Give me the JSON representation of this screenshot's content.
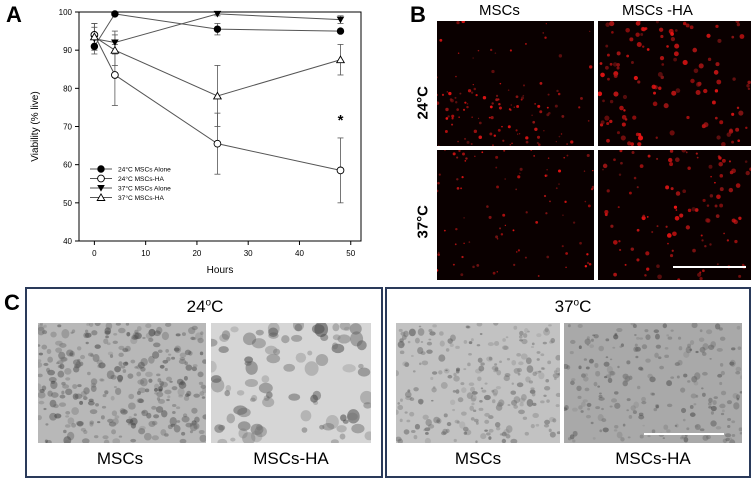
{
  "panelA": {
    "letter": "A",
    "chart_data": {
      "type": "line",
      "xlabel": "Hours",
      "ylabel": "Viability (% live)",
      "xlim": [
        -3,
        52
      ],
      "ylim": [
        40,
        100
      ],
      "xticks": [
        0,
        10,
        20,
        30,
        40,
        50
      ],
      "yticks": [
        40,
        50,
        60,
        70,
        80,
        90,
        100
      ],
      "x": [
        0,
        4,
        24,
        48
      ],
      "series": [
        {
          "name": "24°C MSCs Alone",
          "marker": "filled-circle",
          "values": [
            91,
            99.5,
            95.5,
            95
          ],
          "errors": [
            2,
            0.5,
            1.5,
            0.5
          ]
        },
        {
          "name": "24°C MSCs-HA",
          "marker": "open-circle",
          "values": [
            94,
            83.5,
            65.5,
            58.5
          ],
          "errors": [
            3,
            8,
            8,
            8.5
          ]
        },
        {
          "name": "37°C MSCs Alone",
          "marker": "filled-triangle-down",
          "values": [
            93,
            92,
            99.5,
            98
          ],
          "errors": [
            3,
            3,
            0.5,
            1
          ]
        },
        {
          "name": "37°C MSCs-HA",
          "marker": "open-triangle-up",
          "values": [
            93.5,
            90,
            78,
            87.5
          ],
          "errors": [
            3.5,
            4,
            8,
            4
          ]
        }
      ],
      "annotation": {
        "text": "*",
        "x": 48,
        "y": 72
      },
      "legend_position": "lower-left",
      "grid": false
    }
  },
  "panelB": {
    "letter": "B",
    "col1": "MSCs",
    "col2": "MSCs -HA",
    "row1": "24°C",
    "row2": "37°C",
    "image_color": "#ff2020"
  },
  "panelC": {
    "letter": "C",
    "left_temp_base": "24",
    "left_temp_unit": "C",
    "right_temp_base": "37",
    "right_temp_unit": "C",
    "sup": "o",
    "label1": "MSCs",
    "label2": "MSCs-HA",
    "label3": "MSCs",
    "label4": "MSCs-HA",
    "frame_color": "#2a3a5a"
  }
}
